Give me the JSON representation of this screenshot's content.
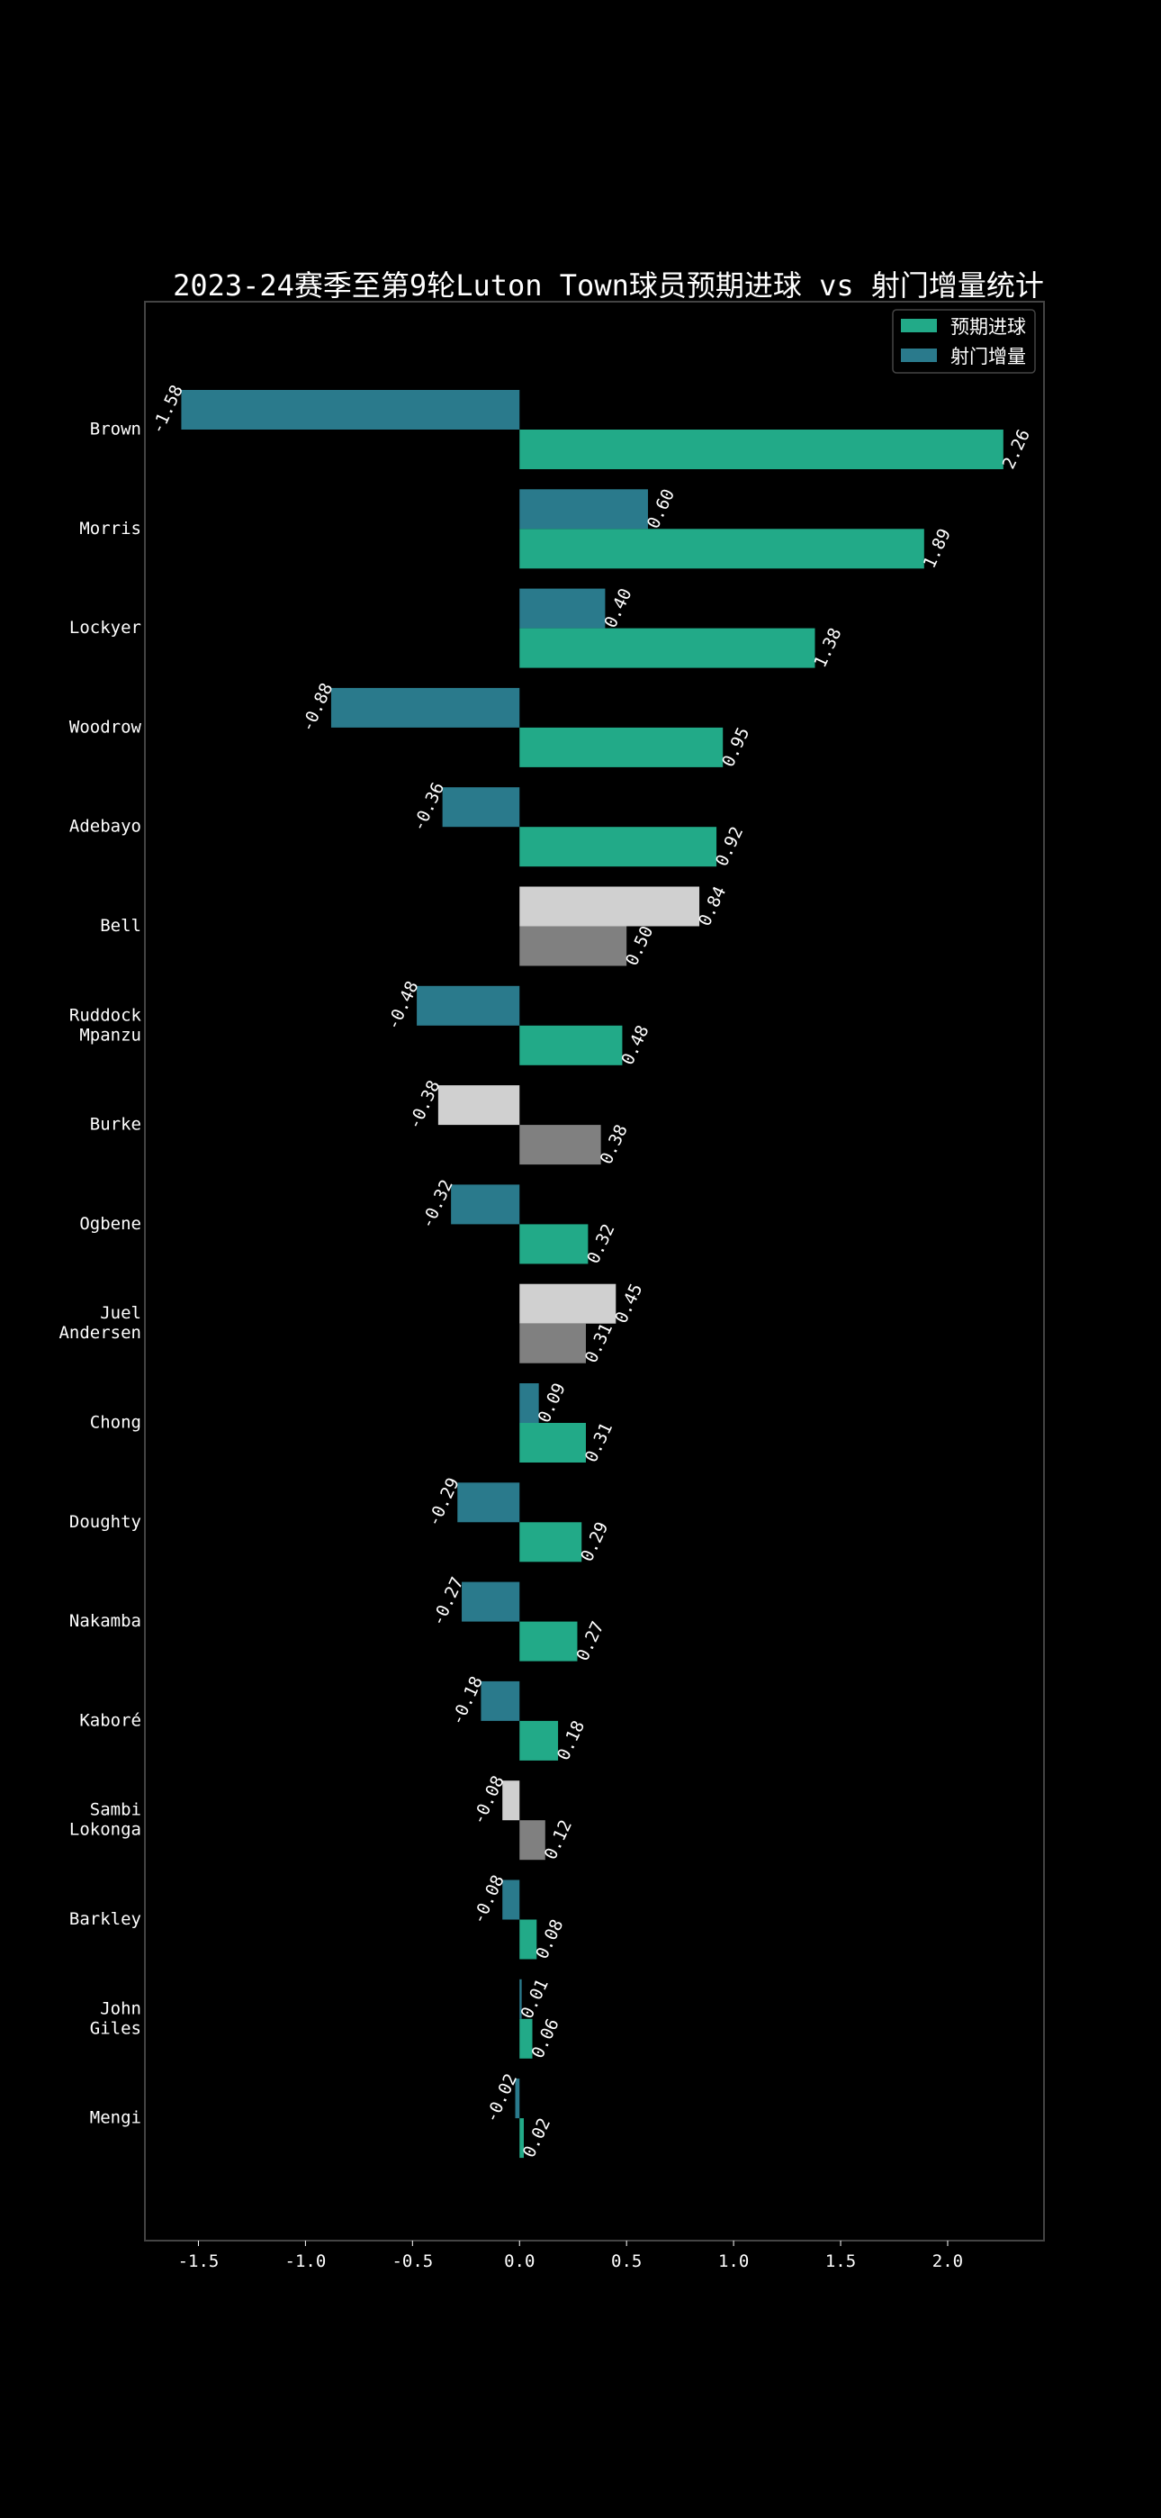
{
  "chart_data": {
    "type": "bar",
    "orientation": "horizontal",
    "title": "2023-24赛季至第9轮Luton Town球员预期进球 vs 射门增量统计",
    "xlabel": "",
    "ylabel": "",
    "xlim": [
      -1.75,
      2.45
    ],
    "xticks": [
      -1.5,
      -1.0,
      -0.5,
      0.0,
      0.5,
      1.0,
      1.5,
      2.0
    ],
    "xtick_labels": [
      "-1.5",
      "-1.0",
      "-0.5",
      "0.0",
      "0.5",
      "1.0",
      "1.5",
      "2.0"
    ],
    "grid": false,
    "legend_position": "top-right",
    "categories": [
      [
        "Brown"
      ],
      [
        "Morris"
      ],
      [
        "Lockyer"
      ],
      [
        "Woodrow"
      ],
      [
        "Adebayo"
      ],
      [
        "Bell"
      ],
      [
        "Ruddock",
        "Mpanzu"
      ],
      [
        "Burke"
      ],
      [
        "Ogbene"
      ],
      [
        "Juel",
        "Andersen"
      ],
      [
        "Chong"
      ],
      [
        "Doughty"
      ],
      [
        "Nakamba"
      ],
      [
        "Kaboré"
      ],
      [
        "Sambi",
        "Lokonga"
      ],
      [
        "Barkley"
      ],
      [
        "John",
        "Giles"
      ],
      [
        "Mengi"
      ]
    ],
    "series": [
      {
        "name": "预期进球",
        "color": "#22aa88",
        "values": [
          2.26,
          1.89,
          1.38,
          0.95,
          0.92,
          0.5,
          0.48,
          0.38,
          0.32,
          0.31,
          0.31,
          0.29,
          0.27,
          0.18,
          0.12,
          0.08,
          0.06,
          0.02
        ],
        "labels": [
          "2.26",
          "1.89",
          "1.38",
          "0.95",
          "0.92",
          "0.50",
          "0.48",
          "0.38",
          "0.32",
          "0.31",
          "0.31",
          "0.29",
          "0.27",
          "0.18",
          "0.12",
          "0.08",
          "0.06",
          "0.02"
        ]
      },
      {
        "name": "射门增量",
        "color": "#2a7a8c",
        "values": [
          -1.58,
          0.6,
          0.4,
          -0.88,
          -0.36,
          0.84,
          -0.48,
          -0.38,
          -0.32,
          0.45,
          0.09,
          -0.29,
          -0.27,
          -0.18,
          -0.08,
          -0.08,
          0.01,
          -0.02
        ],
        "labels": [
          "-1.58",
          "0.60",
          "0.40",
          "-0.88",
          "-0.36",
          "0.84",
          "-0.48",
          "-0.38",
          "-0.32",
          "0.45",
          "0.09",
          "-0.29",
          "-0.27",
          "-0.18",
          "-0.08",
          "-0.08",
          "0.01",
          "-0.02"
        ]
      }
    ],
    "highlight_rows": [
      5,
      7,
      9,
      14
    ],
    "highlight_colors": {
      "expected": "#808080",
      "delta": "#d0d0d0"
    }
  }
}
